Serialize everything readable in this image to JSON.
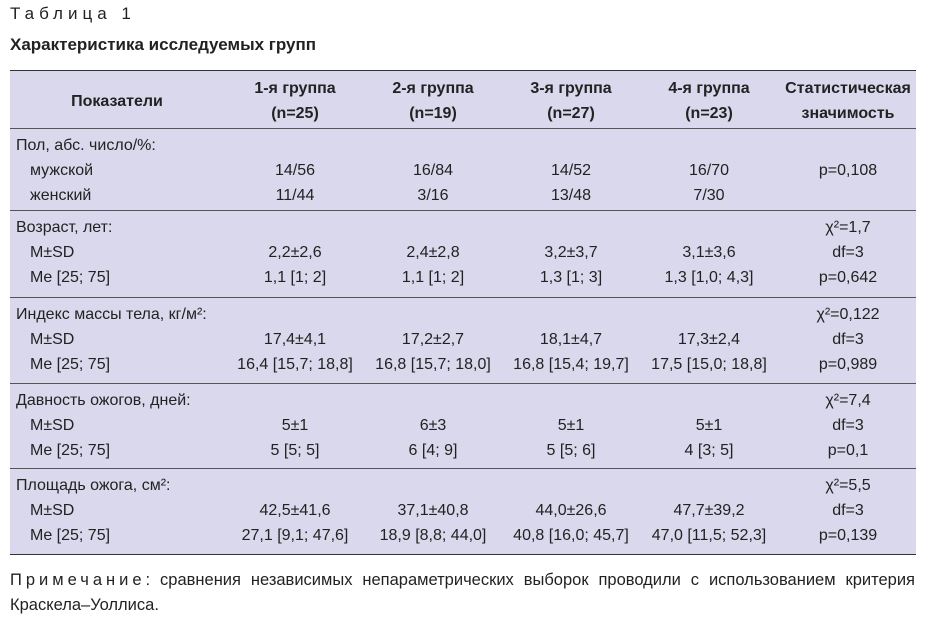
{
  "header": {
    "table_label": "Таблица 1",
    "title": "Характеристика исследуемых групп"
  },
  "table": {
    "columns": [
      "Показатели",
      "1-я группа\n(n=25)",
      "2-я группа\n(n=19)",
      "3-я группа\n(n=27)",
      "4-я группа\n(n=23)",
      "Статистическая\nзначимость"
    ],
    "sections": [
      {
        "rows": [
          {
            "label": "Пол, абс. число/%:"
          },
          {
            "label": "мужской",
            "cells": [
              "14/56",
              "16/84",
              "14/52",
              "16/70"
            ],
            "stat": "p=0,108"
          },
          {
            "label": "женский",
            "cells": [
              "11/44",
              "3/16",
              "13/48",
              "7/30"
            ]
          }
        ]
      },
      {
        "rows": [
          {
            "label": "Возраст, лет:",
            "stat": "χ²=1,7"
          },
          {
            "label": "M±SD",
            "cells": [
              "2,2±2,6",
              "2,4±2,8",
              "3,2±3,7",
              "3,1±3,6"
            ],
            "stat": "df=3"
          },
          {
            "label": "Me [25; 75]",
            "cells": [
              "1,1 [1; 2]",
              "1,1 [1; 2]",
              "1,3 [1; 3]",
              "1,3 [1,0; 4,3]"
            ],
            "stat": "p=0,642"
          }
        ]
      },
      {
        "rows": [
          {
            "label": "Индекс массы тела, кг/м²:",
            "stat": "χ²=0,122"
          },
          {
            "label": "M±SD",
            "cells": [
              "17,4±4,1",
              "17,2±2,7",
              "18,1±4,7",
              "17,3±2,4"
            ],
            "stat": "df=3"
          },
          {
            "label": "Me [25; 75]",
            "cells": [
              "16,4 [15,7; 18,8]",
              "16,8 [15,7; 18,0]",
              "16,8 [15,4; 19,7]",
              "17,5 [15,0; 18,8]"
            ],
            "stat": "p=0,989"
          }
        ]
      },
      {
        "rows": [
          {
            "label": "Давность ожогов, дней:",
            "stat": "χ²=7,4"
          },
          {
            "label": "M±SD",
            "cells": [
              "5±1",
              "6±3",
              "5±1",
              "5±1"
            ],
            "stat": "df=3"
          },
          {
            "label": "Me [25; 75]",
            "cells": [
              "5 [5; 5]",
              "6 [4; 9]",
              "5 [5; 6]",
              "4 [3; 5]"
            ],
            "stat": "p=0,1"
          }
        ]
      },
      {
        "rows": [
          {
            "label": "Площадь ожога, см²:",
            "stat": "χ²=5,5"
          },
          {
            "label": "M±SD",
            "cells": [
              "42,5±41,6",
              "37,1±40,8",
              "44,0±26,6",
              "47,7±39,2"
            ],
            "stat": "df=3"
          },
          {
            "label": "Me [25; 75]",
            "cells": [
              "27,1 [9,1; 47,6]",
              "18,9 [8,8; 44,0]",
              "40,8 [16,0; 45,7]",
              "47,0 [11,5; 52,3]"
            ],
            "stat": "p=0,139"
          }
        ]
      }
    ]
  },
  "note": {
    "lead": "Примечание",
    "text": ": сравнения независимых непараметрических выборок проводили с использованием критерия Краскела–Уоллиса."
  }
}
